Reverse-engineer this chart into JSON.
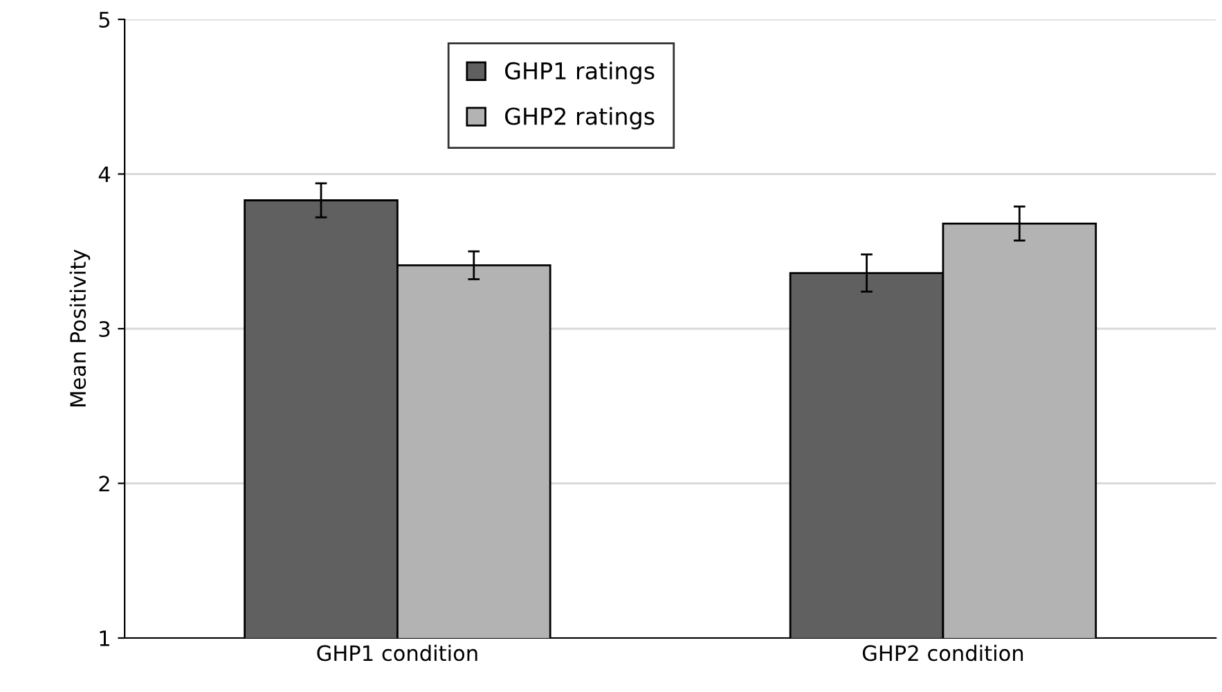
{
  "chart_data": {
    "type": "bar",
    "ylabel": "Mean Positivity",
    "categories": [
      "GHP1 condition",
      "GHP2 condition"
    ],
    "series": [
      {
        "name": "GHP1 ratings",
        "color": "#606060",
        "values": [
          3.83,
          3.36
        ],
        "errors": [
          0.11,
          0.12
        ]
      },
      {
        "name": "GHP2 ratings",
        "color": "#b3b3b3",
        "values": [
          3.41,
          3.68
        ],
        "errors": [
          0.09,
          0.11
        ]
      }
    ],
    "ylim": [
      1,
      5
    ],
    "yticks": [
      1,
      2,
      3,
      4,
      5
    ],
    "grid": "y",
    "legend": "top"
  }
}
